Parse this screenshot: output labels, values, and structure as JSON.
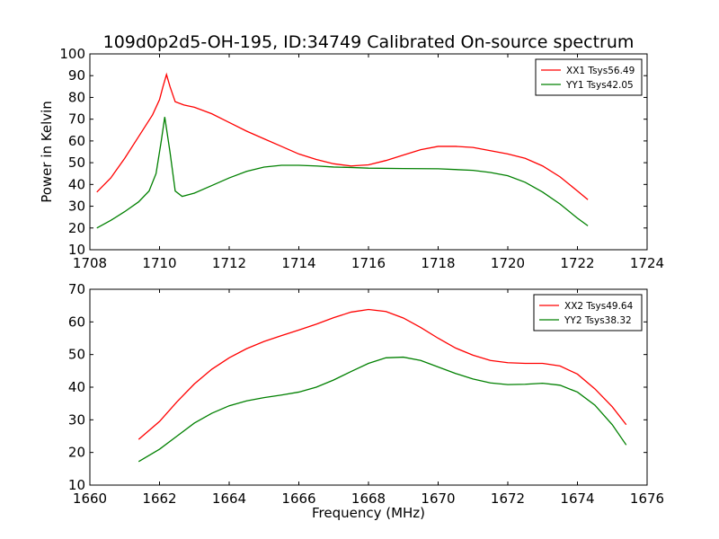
{
  "chart_data": [
    {
      "type": "line",
      "title": "109d0p2d5-OH-195, ID:34749 Calibrated On-source spectrum",
      "xlabel": "",
      "ylabel": "Power in Kelvin",
      "xlim": [
        1708,
        1724
      ],
      "ylim": [
        10,
        100
      ],
      "xticks": [
        1708,
        1710,
        1712,
        1714,
        1716,
        1718,
        1720,
        1722,
        1724
      ],
      "yticks": [
        10,
        20,
        30,
        40,
        50,
        60,
        70,
        80,
        90,
        100
      ],
      "grid": false,
      "legend_position": "top-right",
      "series": [
        {
          "name": "XX1 Tsys56.49",
          "color": "#ff0000",
          "points": [
            [
              1708.2,
              36.5
            ],
            [
              1708.6,
              43
            ],
            [
              1709.0,
              52
            ],
            [
              1709.4,
              62
            ],
            [
              1709.8,
              72
            ],
            [
              1710.0,
              79
            ],
            [
              1710.1,
              85
            ],
            [
              1710.2,
              90.5
            ],
            [
              1710.3,
              85
            ],
            [
              1710.45,
              78
            ],
            [
              1710.7,
              76.5
            ],
            [
              1711.0,
              75.5
            ],
            [
              1711.5,
              72.5
            ],
            [
              1712.0,
              68.5
            ],
            [
              1712.5,
              64.5
            ],
            [
              1713.0,
              61
            ],
            [
              1713.5,
              57.5
            ],
            [
              1714.0,
              54
            ],
            [
              1714.5,
              51.5
            ],
            [
              1715.0,
              49.5
            ],
            [
              1715.5,
              48.5
            ],
            [
              1716.0,
              49
            ],
            [
              1716.5,
              51
            ],
            [
              1717.0,
              53.5
            ],
            [
              1717.5,
              56
            ],
            [
              1718.0,
              57.5
            ],
            [
              1718.5,
              57.5
            ],
            [
              1719.0,
              57
            ],
            [
              1719.5,
              55.5
            ],
            [
              1720.0,
              54
            ],
            [
              1720.5,
              52
            ],
            [
              1721.0,
              48.5
            ],
            [
              1721.5,
              43.5
            ],
            [
              1722.0,
              37
            ],
            [
              1722.3,
              33
            ]
          ]
        },
        {
          "name": "YY1 Tsys42.05",
          "color": "#008000",
          "points": [
            [
              1708.2,
              20
            ],
            [
              1708.6,
              23.5
            ],
            [
              1709.0,
              27.5
            ],
            [
              1709.4,
              32
            ],
            [
              1709.7,
              37
            ],
            [
              1709.9,
              45
            ],
            [
              1710.05,
              60
            ],
            [
              1710.15,
              71
            ],
            [
              1710.3,
              55
            ],
            [
              1710.45,
              37
            ],
            [
              1710.65,
              34.5
            ],
            [
              1711.0,
              36
            ],
            [
              1711.5,
              39.5
            ],
            [
              1712.0,
              43
            ],
            [
              1712.5,
              46
            ],
            [
              1713.0,
              48
            ],
            [
              1713.5,
              48.8
            ],
            [
              1714.0,
              48.8
            ],
            [
              1714.5,
              48.5
            ],
            [
              1715.0,
              48
            ],
            [
              1715.5,
              47.8
            ],
            [
              1716.0,
              47.5
            ],
            [
              1717.0,
              47.3
            ],
            [
              1718.0,
              47.2
            ],
            [
              1719.0,
              46.5
            ],
            [
              1719.5,
              45.5
            ],
            [
              1720.0,
              44
            ],
            [
              1720.5,
              41
            ],
            [
              1721.0,
              36.5
            ],
            [
              1721.5,
              31
            ],
            [
              1722.0,
              24.5
            ],
            [
              1722.3,
              21
            ]
          ]
        }
      ]
    },
    {
      "type": "line",
      "title": "",
      "xlabel": "Frequency (MHz)",
      "ylabel": "",
      "xlim": [
        1660,
        1676
      ],
      "ylim": [
        10,
        70
      ],
      "xticks": [
        1660,
        1662,
        1664,
        1666,
        1668,
        1670,
        1672,
        1674,
        1676
      ],
      "yticks": [
        10,
        20,
        30,
        40,
        50,
        60,
        70
      ],
      "grid": false,
      "legend_position": "top-right",
      "series": [
        {
          "name": "XX2 Tsys49.64",
          "color": "#ff0000",
          "points": [
            [
              1661.4,
              24
            ],
            [
              1662.0,
              29.5
            ],
            [
              1662.5,
              35.5
            ],
            [
              1663.0,
              41
            ],
            [
              1663.5,
              45.5
            ],
            [
              1664.0,
              49
            ],
            [
              1664.5,
              51.8
            ],
            [
              1665.0,
              54
            ],
            [
              1665.5,
              55.8
            ],
            [
              1666.0,
              57.5
            ],
            [
              1666.5,
              59.3
            ],
            [
              1667.0,
              61.3
            ],
            [
              1667.5,
              63
            ],
            [
              1668.0,
              63.8
            ],
            [
              1668.5,
              63.2
            ],
            [
              1669.0,
              61.2
            ],
            [
              1669.5,
              58.3
            ],
            [
              1670.0,
              55
            ],
            [
              1670.5,
              52
            ],
            [
              1671.0,
              49.8
            ],
            [
              1671.5,
              48.2
            ],
            [
              1672.0,
              47.5
            ],
            [
              1672.5,
              47.3
            ],
            [
              1673.0,
              47.3
            ],
            [
              1673.5,
              46.5
            ],
            [
              1674.0,
              44
            ],
            [
              1674.5,
              39.5
            ],
            [
              1675.0,
              34
            ],
            [
              1675.4,
              28.5
            ]
          ]
        },
        {
          "name": "YY2 Tsys38.32",
          "color": "#008000",
          "points": [
            [
              1661.4,
              17.2
            ],
            [
              1662.0,
              21
            ],
            [
              1662.5,
              25
            ],
            [
              1663.0,
              29
            ],
            [
              1663.5,
              32
            ],
            [
              1664.0,
              34.3
            ],
            [
              1664.5,
              35.8
            ],
            [
              1665.0,
              36.8
            ],
            [
              1665.5,
              37.6
            ],
            [
              1666.0,
              38.5
            ],
            [
              1666.5,
              40
            ],
            [
              1667.0,
              42.2
            ],
            [
              1667.5,
              44.8
            ],
            [
              1668.0,
              47.3
            ],
            [
              1668.5,
              49
            ],
            [
              1669.0,
              49.2
            ],
            [
              1669.5,
              48.2
            ],
            [
              1670.0,
              46.2
            ],
            [
              1670.5,
              44.2
            ],
            [
              1671.0,
              42.5
            ],
            [
              1671.5,
              41.3
            ],
            [
              1672.0,
              40.8
            ],
            [
              1672.5,
              40.9
            ],
            [
              1673.0,
              41.2
            ],
            [
              1673.5,
              40.6
            ],
            [
              1674.0,
              38.5
            ],
            [
              1674.5,
              34.5
            ],
            [
              1675.0,
              28.5
            ],
            [
              1675.4,
              22.3
            ]
          ]
        }
      ]
    }
  ]
}
